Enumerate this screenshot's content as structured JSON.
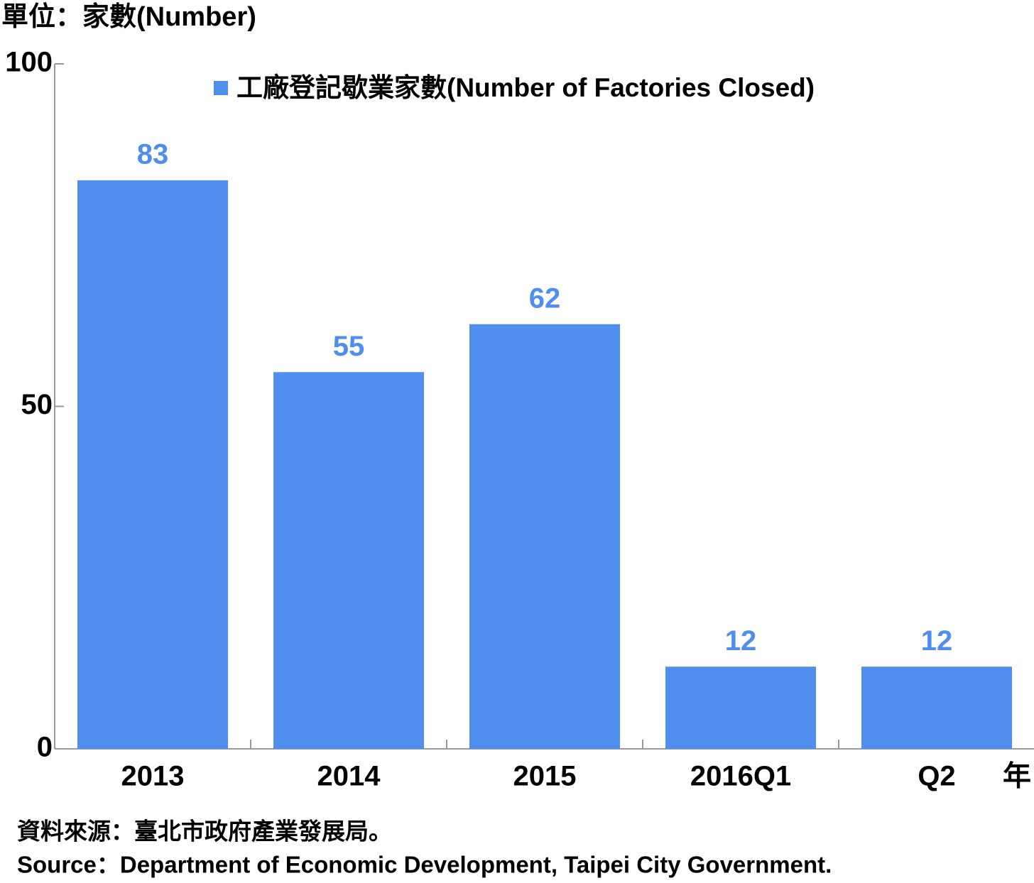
{
  "chart_data": {
    "type": "bar",
    "y_axis_label": "單位：家數(Number)",
    "x_axis_label": "年",
    "categories": [
      "2013",
      "2014",
      "2015",
      "2016Q1",
      "Q2"
    ],
    "series": [
      {
        "name": "工廠登記歇業家數(Number of Factories Closed)",
        "color": "#4f8eec",
        "values": [
          83,
          55,
          62,
          12,
          12
        ]
      }
    ],
    "ylim": [
      0,
      100
    ],
    "yticks": [
      0,
      50,
      100
    ],
    "grid": false,
    "legend": "top",
    "source": [
      "資料來源：臺北市政府產業發展局。",
      "Source：Department of Economic Development, Taipei City Government."
    ]
  }
}
